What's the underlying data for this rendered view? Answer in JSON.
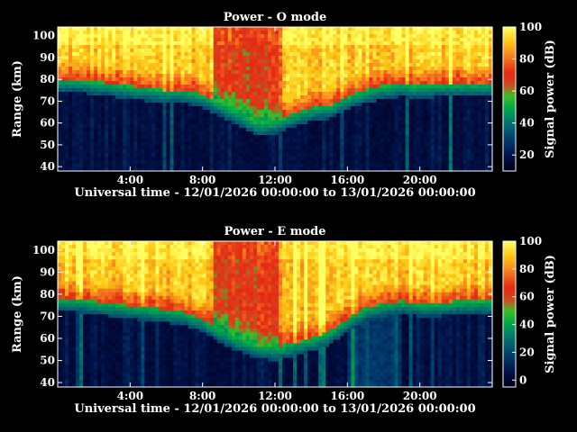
{
  "chart_data": [
    {
      "type": "heatmap",
      "title": "Power - O mode",
      "xlabel": "Universal time - 12/01/2026 00:00:00 to 13/01/2026 00:00:00",
      "ylabel": "Range (km)",
      "colorbar_label": "Signal power (dB)",
      "xlim": [
        "00:00",
        "24:00"
      ],
      "ylim": [
        38,
        104
      ],
      "xticks": [
        "4:00",
        "8:00",
        "12:00",
        "16:00",
        "20:00"
      ],
      "xtick_hours": [
        4,
        8,
        12,
        16,
        20
      ],
      "yticks": [
        "40",
        "50",
        "60",
        "70",
        "80",
        "90",
        "100"
      ],
      "ytick_values": [
        40,
        50,
        60,
        70,
        80,
        90,
        100
      ],
      "colorbar_ticks": [
        "20",
        "40",
        "60",
        "80",
        "100"
      ],
      "colorbar_tick_values": [
        20,
        40,
        60,
        80,
        100
      ],
      "colorbar_range": [
        10,
        100
      ],
      "echo_bottom_km": [
        [
          0,
          77
        ],
        [
          1,
          77
        ],
        [
          2,
          76
        ],
        [
          3,
          75
        ],
        [
          4,
          74
        ],
        [
          5,
          73
        ],
        [
          6,
          72
        ],
        [
          7,
          72
        ],
        [
          8,
          70
        ],
        [
          9,
          66
        ],
        [
          10,
          62
        ],
        [
          11,
          57
        ],
        [
          12,
          58
        ],
        [
          13,
          61
        ],
        [
          14,
          64
        ],
        [
          15,
          65
        ],
        [
          16,
          69
        ],
        [
          17,
          72
        ],
        [
          18,
          74
        ],
        [
          19,
          75
        ],
        [
          20,
          74
        ],
        [
          21,
          75
        ],
        [
          22,
          75
        ],
        [
          23,
          75
        ],
        [
          24,
          75
        ]
      ]
    },
    {
      "type": "heatmap",
      "title": "Power - E mode",
      "xlabel": "Universal time - 12/01/2026 00:00:00 to 13/01/2026 00:00:00",
      "ylabel": "Range (km)",
      "colorbar_label": "Signal power (dB)",
      "xlim": [
        "00:00",
        "24:00"
      ],
      "ylim": [
        38,
        104
      ],
      "xticks": [
        "4:00",
        "8:00",
        "12:00",
        "16:00",
        "20:00"
      ],
      "xtick_hours": [
        4,
        8,
        12,
        16,
        20
      ],
      "yticks": [
        "40",
        "50",
        "60",
        "70",
        "80",
        "90",
        "100"
      ],
      "ytick_values": [
        40,
        50,
        60,
        70,
        80,
        90,
        100
      ],
      "colorbar_ticks": [
        "0",
        "20",
        "40",
        "60",
        "80",
        "100"
      ],
      "colorbar_tick_values": [
        0,
        20,
        40,
        60,
        80,
        100
      ],
      "colorbar_range": [
        -5,
        100
      ],
      "echo_bottom_km": [
        [
          0,
          75
        ],
        [
          1,
          75
        ],
        [
          2,
          74
        ],
        [
          3,
          73
        ],
        [
          4,
          72
        ],
        [
          5,
          71
        ],
        [
          6,
          70
        ],
        [
          7,
          69
        ],
        [
          8,
          66
        ],
        [
          9,
          61
        ],
        [
          10,
          57
        ],
        [
          11,
          54
        ],
        [
          12,
          53
        ],
        [
          13,
          55
        ],
        [
          14,
          57
        ],
        [
          15,
          60
        ],
        [
          16,
          66
        ],
        [
          17,
          71
        ],
        [
          18,
          73
        ],
        [
          19,
          74
        ],
        [
          20,
          73
        ],
        [
          21,
          73
        ],
        [
          22,
          74
        ],
        [
          23,
          74
        ],
        [
          24,
          74
        ]
      ]
    }
  ]
}
